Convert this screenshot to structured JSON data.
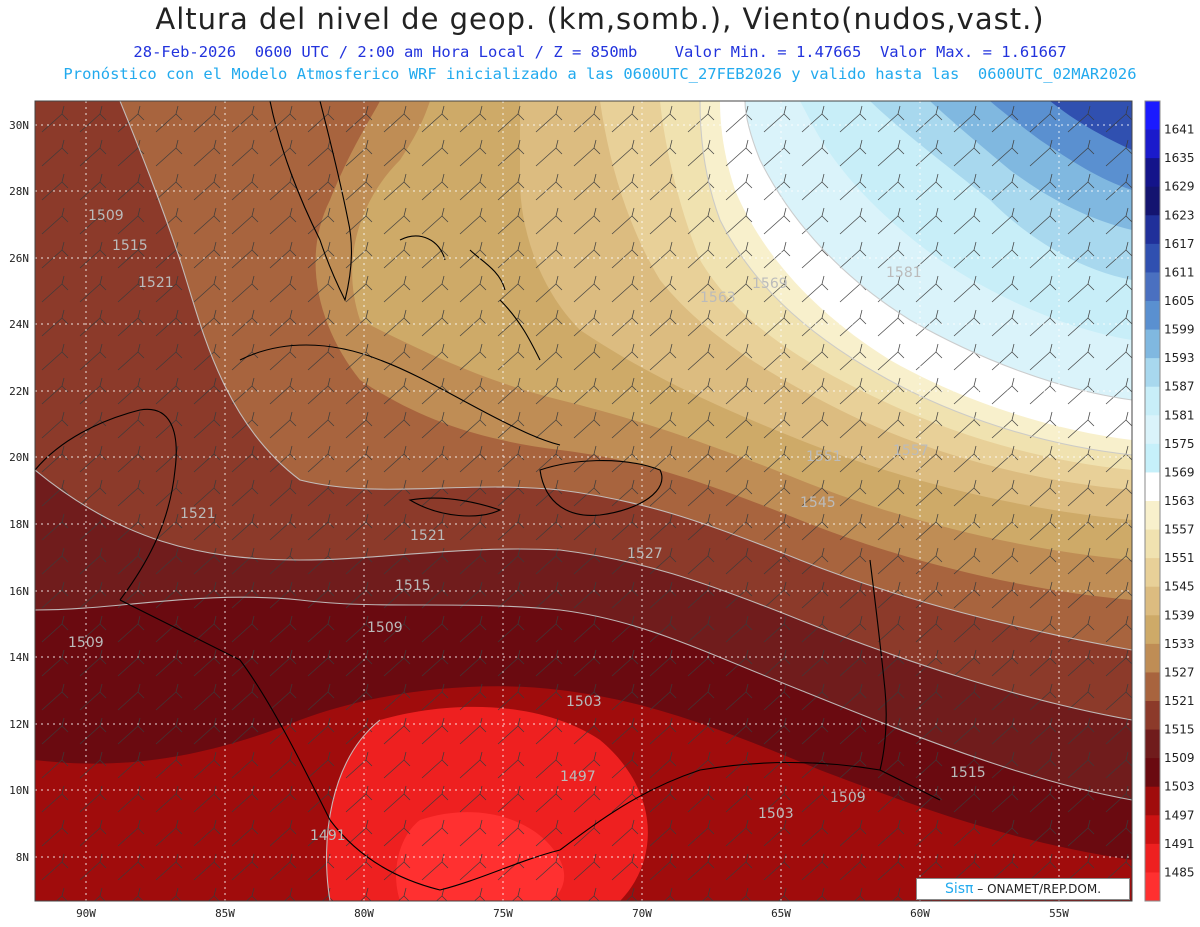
{
  "header": {
    "title": "Altura del nivel de geop. (km,somb.), Viento(nudos,vast.)",
    "subtitle": "28-Feb-2026  0600 UTC / 2:00 am Hora Local / Z = 850mb    Valor Min. = 1.47665  Valor Max. = 1.61667",
    "subtitle2": "Pronóstico con el Modelo Atmosferico WRF inicializado a las 0600UTC_27FEB2026 y valido hasta las  0600UTC_02MAR2026"
  },
  "map": {
    "lat_labels": [
      "30N",
      "28N",
      "26N",
      "24N",
      "22N",
      "20N",
      "18N",
      "16N",
      "14N",
      "12N",
      "10N",
      "8N"
    ],
    "lon_labels": [
      "90W",
      "85W",
      "80W",
      "75W",
      "70W",
      "65W",
      "60W",
      "55W"
    ],
    "contour_labels": [
      "1509",
      "1515",
      "1521",
      "1503",
      "1497",
      "1491",
      "1503",
      "1509",
      "1515",
      "1521",
      "1527",
      "1545",
      "1551",
      "1557",
      "1563",
      "1569",
      "1581",
      "1515",
      "1521",
      "1509",
      "1509"
    ]
  },
  "colorbar": {
    "labels": [
      "1641",
      "1635",
      "1629",
      "1623",
      "1617",
      "1611",
      "1605",
      "1599",
      "1593",
      "1587",
      "1581",
      "1575",
      "1569",
      "1563",
      "1557",
      "1551",
      "1545",
      "1539",
      "1533",
      "1527",
      "1521",
      "1515",
      "1509",
      "1503",
      "1497",
      "1491",
      "1485"
    ],
    "colors": [
      "#1a1aff",
      "#1a1acc",
      "#14148a",
      "#141470",
      "#20309a",
      "#3050b0",
      "#4a70c0",
      "#5a90d0",
      "#80b8e0",
      "#a8d8ee",
      "#c8eef8",
      "#daf3fa",
      "#c6f0fa",
      "#ffffff",
      "#f8f0cc",
      "#f0e2b0",
      "#e8d098",
      "#dcbc80",
      "#ceaa68",
      "#bf8d55",
      "#a8643e",
      "#8c3a2a",
      "#701c1c",
      "#6a0a10",
      "#a00c0c",
      "#cc1212",
      "#ee2020",
      "#ff3030"
    ]
  },
  "credit": {
    "logo": "Sisπ",
    "text": " – ONAMET/REP.DOM."
  }
}
